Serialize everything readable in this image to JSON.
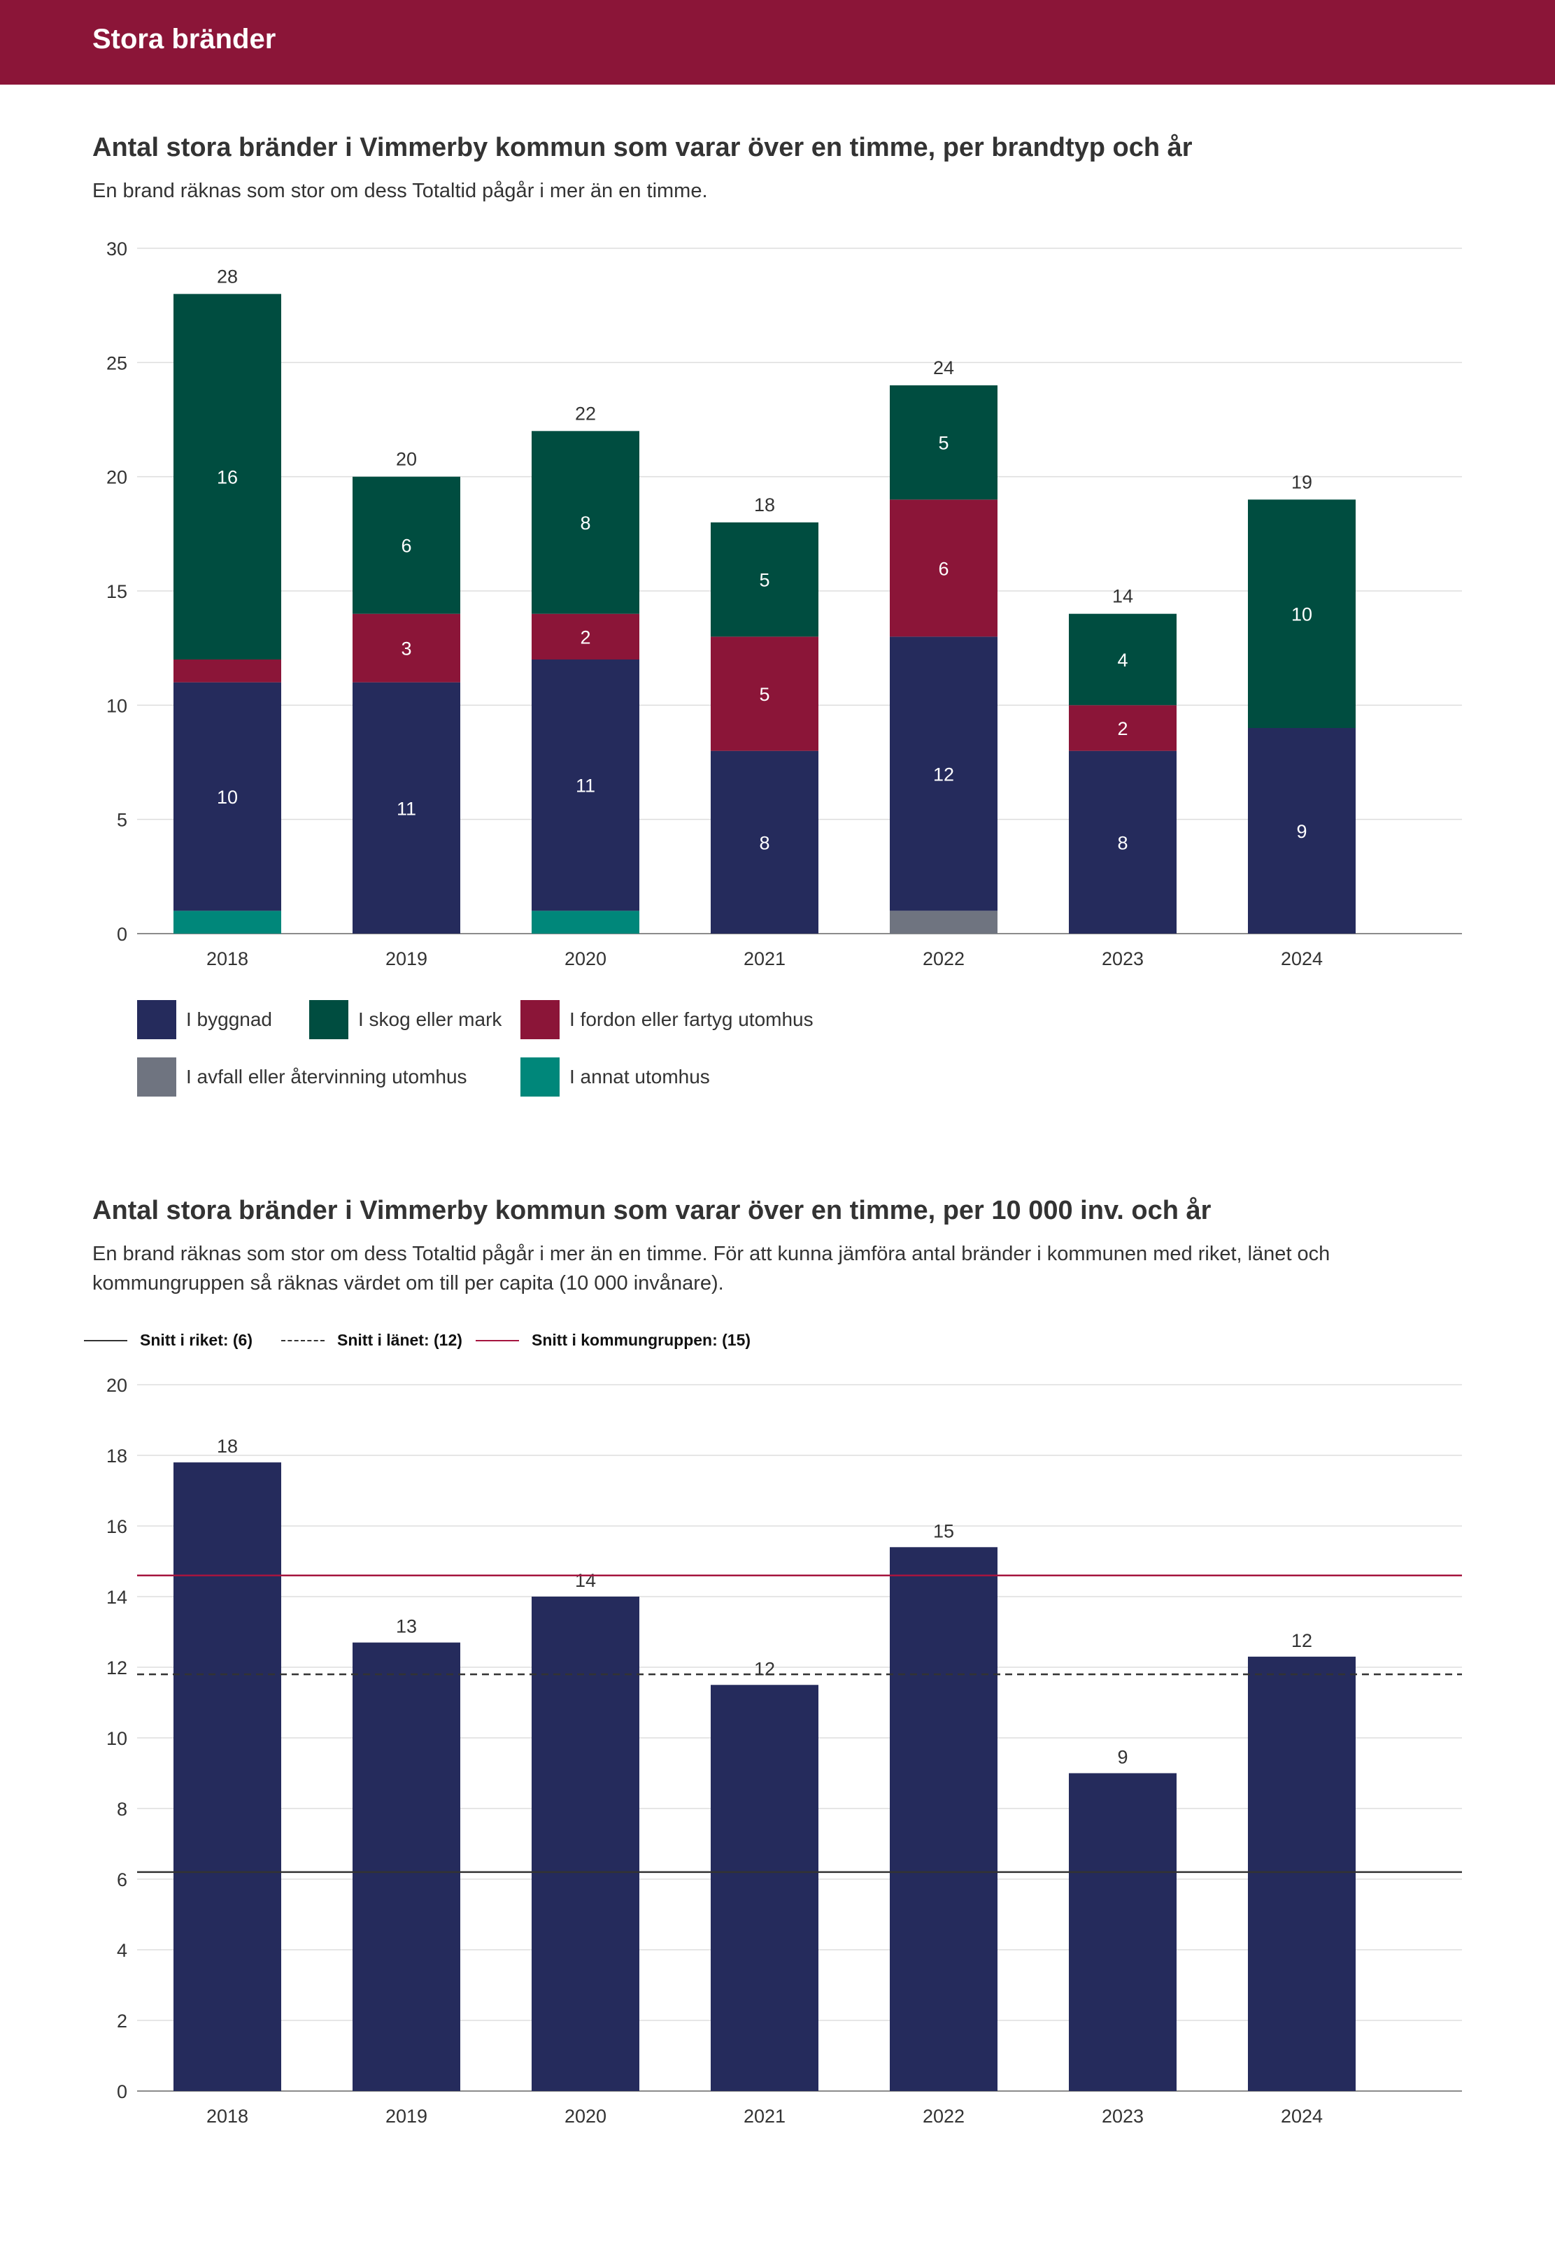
{
  "header": {
    "title": "Stora bränder"
  },
  "colors": {
    "header_bg": "#8b1538",
    "byggnad": "#252b5c",
    "skog": "#004d40",
    "fordon": "#8b1538",
    "avfall": "#6f7480",
    "annat": "#00877a",
    "riket": "#333333",
    "lanet": "#333333",
    "kommungruppen": "#a5153f"
  },
  "chart1": {
    "title": "Antal stora bränder i Vimmerby kommun som varar över en timme, per brandtyp och år",
    "subtitle": "En brand räknas som stor om dess Totaltid pågår i mer än en timme."
  },
  "chart2": {
    "title": "Antal stora bränder i Vimmerby kommun som varar över en timme, per 10 000 inv. och år",
    "subtitle": "En brand räknas som stor om dess Totaltid pågår i mer än en timme. För att kunna jämföra antal bränder i kommunen med riket, länet och kommungruppen så räknas värdet om till per capita (10 000 invånare)."
  },
  "chart_data": [
    {
      "type": "bar",
      "stacked": true,
      "categories": [
        "2018",
        "2019",
        "2020",
        "2021",
        "2022",
        "2023",
        "2024"
      ],
      "ylim": [
        0,
        30
      ],
      "yticks": [
        0,
        5,
        10,
        15,
        20,
        25,
        30
      ],
      "grid": true,
      "legend_position": "bottom",
      "totals": [
        28,
        20,
        22,
        18,
        24,
        14,
        19
      ],
      "series": [
        {
          "name": "I annat utomhus",
          "color": "#00877a",
          "values": [
            1,
            0,
            1,
            0,
            0,
            0,
            0
          ],
          "labels": [
            "",
            "",
            "",
            "",
            "",
            "",
            ""
          ]
        },
        {
          "name": "I avfall eller återvinning utomhus",
          "color": "#6f7480",
          "values": [
            0,
            0,
            0,
            0,
            1,
            0,
            0
          ],
          "labels": [
            "",
            "",
            "",
            "",
            "",
            "",
            ""
          ]
        },
        {
          "name": "I byggnad",
          "color": "#252b5c",
          "values": [
            10,
            11,
            11,
            8,
            12,
            8,
            9
          ],
          "labels": [
            "10",
            "11",
            "11",
            "8",
            "12",
            "8",
            "9"
          ]
        },
        {
          "name": "I fordon eller fartyg utomhus",
          "color": "#8b1538",
          "values": [
            1,
            3,
            2,
            5,
            6,
            2,
            0
          ],
          "labels": [
            "",
            "3",
            "2",
            "5",
            "6",
            "2",
            ""
          ]
        },
        {
          "name": "I skog eller mark",
          "color": "#004d40",
          "values": [
            16,
            6,
            8,
            5,
            5,
            4,
            10
          ],
          "labels": [
            "16",
            "6",
            "8",
            "5",
            "5",
            "4",
            "10"
          ]
        }
      ],
      "legend": [
        {
          "name": "I byggnad",
          "color": "#252b5c"
        },
        {
          "name": "I skog eller mark",
          "color": "#004d40"
        },
        {
          "name": "I fordon eller fartyg utomhus",
          "color": "#8b1538"
        },
        {
          "name": "I avfall eller återvinning utomhus",
          "color": "#6f7480"
        },
        {
          "name": "I annat utomhus",
          "color": "#00877a"
        }
      ]
    },
    {
      "type": "bar",
      "categories": [
        "2018",
        "2019",
        "2020",
        "2021",
        "2022",
        "2023",
        "2024"
      ],
      "values": [
        17.8,
        12.7,
        14.0,
        11.5,
        15.4,
        9.0,
        12.3
      ],
      "value_labels": [
        "18",
        "13",
        "14",
        "12",
        "15",
        "9",
        "12"
      ],
      "ylim": [
        0,
        20
      ],
      "yticks": [
        0,
        2,
        4,
        6,
        8,
        10,
        12,
        14,
        16,
        18,
        20
      ],
      "grid": true,
      "bar_color": "#252b5c",
      "reference_lines": [
        {
          "label": "Snitt i riket: (6)",
          "value": 6.2,
          "style": "solid",
          "color": "#333333"
        },
        {
          "label": "Snitt i länet: (12)",
          "value": 11.8,
          "style": "dashed",
          "color": "#333333"
        },
        {
          "label": "Snitt i kommungruppen: (15)",
          "value": 14.6,
          "style": "solid",
          "color": "#a5153f"
        }
      ]
    }
  ]
}
